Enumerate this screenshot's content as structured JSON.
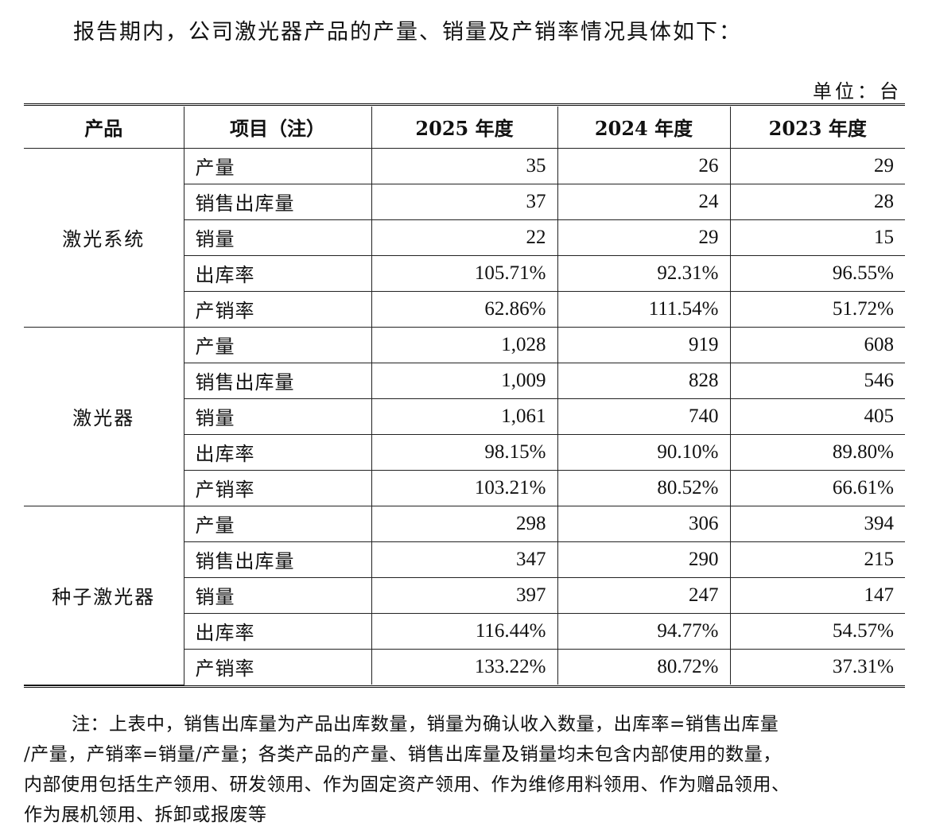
{
  "intro": "报告期内，公司激光器产品的产量、销量及产销率情况具体如下：",
  "unit": "单位：台",
  "table": {
    "headers": [
      "产品",
      "项目（注）",
      "2025 年度",
      "2024 年度",
      "2023 年度"
    ],
    "groups": [
      {
        "product": "激光系统",
        "rows": [
          {
            "item": "产量",
            "y2025": "35",
            "y2024": "26",
            "y2023": "29"
          },
          {
            "item": "销售出库量",
            "y2025": "37",
            "y2024": "24",
            "y2023": "28"
          },
          {
            "item": "销量",
            "y2025": "22",
            "y2024": "29",
            "y2023": "15"
          },
          {
            "item": "出库率",
            "y2025": "105.71%",
            "y2024": "92.31%",
            "y2023": "96.55%"
          },
          {
            "item": "产销率",
            "y2025": "62.86%",
            "y2024": "111.54%",
            "y2023": "51.72%"
          }
        ]
      },
      {
        "product": "激光器",
        "rows": [
          {
            "item": "产量",
            "y2025": "1,028",
            "y2024": "919",
            "y2023": "608"
          },
          {
            "item": "销售出库量",
            "y2025": "1,009",
            "y2024": "828",
            "y2023": "546"
          },
          {
            "item": "销量",
            "y2025": "1,061",
            "y2024": "740",
            "y2023": "405"
          },
          {
            "item": "出库率",
            "y2025": "98.15%",
            "y2024": "90.10%",
            "y2023": "89.80%"
          },
          {
            "item": "产销率",
            "y2025": "103.21%",
            "y2024": "80.52%",
            "y2023": "66.61%"
          }
        ]
      },
      {
        "product": "种子激光器",
        "rows": [
          {
            "item": "产量",
            "y2025": "298",
            "y2024": "306",
            "y2023": "394"
          },
          {
            "item": "销售出库量",
            "y2025": "347",
            "y2024": "290",
            "y2023": "215"
          },
          {
            "item": "销量",
            "y2025": "397",
            "y2024": "247",
            "y2023": "147"
          },
          {
            "item": "出库率",
            "y2025": "116.44%",
            "y2024": "94.77%",
            "y2023": "54.57%"
          },
          {
            "item": "产销率",
            "y2025": "133.22%",
            "y2024": "80.72%",
            "y2023": "37.31%"
          }
        ]
      }
    ]
  },
  "note": {
    "lines": [
      "注：上表中，销售出库量为产品出库数量，销量为确认收入数量，出库率=销售出库量",
      "/产量，产销率=销量/产量；各类产品的产量、销售出库量及销量均未包含内部使用的数量，",
      "内部使用包括生产领用、研发领用、作为固定资产领用、作为维修用料领用、作为赠品领用、",
      "作为展机领用、拆卸或报废等"
    ]
  }
}
